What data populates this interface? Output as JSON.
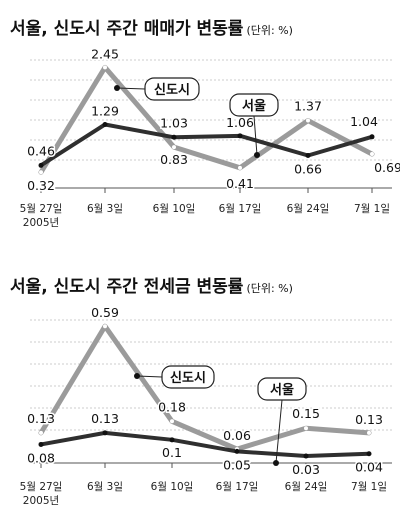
{
  "chart_data": [
    {
      "type": "line",
      "title": "서울, 신도시 주간 매매가 변동률",
      "unit": "(단위: %)",
      "categories": [
        "5월 27일",
        "6월 3일",
        "6월 10일",
        "6월 17일",
        "6월 24일",
        "7월 1일"
      ],
      "year_label": "2005년",
      "ylim": [
        0,
        2.6
      ],
      "grid": "dashed-horizontal",
      "series": [
        {
          "name": "신도시",
          "color": "#9b9b9b",
          "values": [
            0.32,
            2.45,
            0.83,
            0.41,
            1.37,
            0.69
          ]
        },
        {
          "name": "서울",
          "color": "#2f2f2f",
          "values": [
            0.46,
            1.29,
            1.03,
            1.06,
            0.66,
            1.04
          ]
        }
      ]
    },
    {
      "type": "line",
      "title": "서울, 신도시 주간 전세금 변동률",
      "unit": "(단위: %)",
      "categories": [
        "5월 27일",
        "6월 3일",
        "6월 10일",
        "6월 17일",
        "6월 24일",
        "7월 1일"
      ],
      "year_label": "2005년",
      "ylim": [
        0,
        0.66
      ],
      "grid": "dashed-horizontal",
      "series": [
        {
          "name": "신도시",
          "color": "#9b9b9b",
          "values": [
            0.13,
            0.59,
            0.18,
            0.06,
            0.15,
            0.13
          ]
        },
        {
          "name": "서울",
          "color": "#2f2f2f",
          "values": [
            0.08,
            0.13,
            0.1,
            0.05,
            0.03,
            0.04
          ]
        }
      ]
    }
  ],
  "colors": {
    "light_line": "#9b9b9b",
    "dark_line": "#2f2f2f",
    "grid": "#bdbdbd"
  }
}
